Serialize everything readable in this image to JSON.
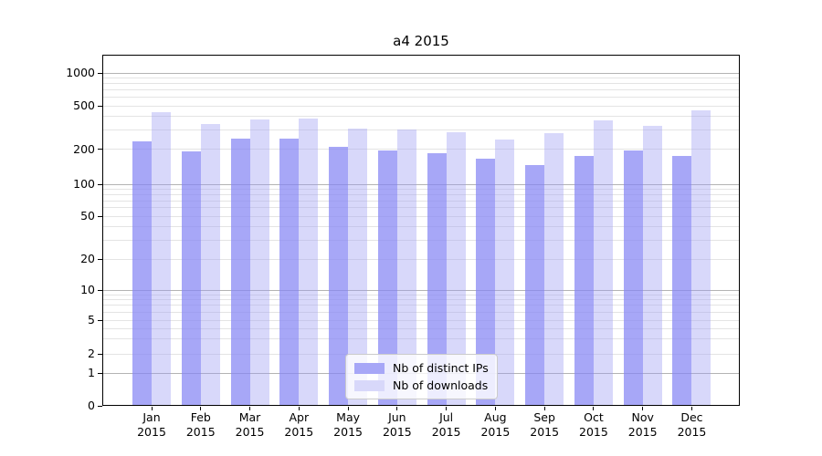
{
  "figure": {
    "title": "a4 2015"
  },
  "chart_data": {
    "type": "bar",
    "title": "a4 2015",
    "yscale": "symlog",
    "grid": true,
    "y_ticks": [
      0,
      1,
      2,
      5,
      10,
      20,
      50,
      100,
      200,
      500,
      1000
    ],
    "ylim": [
      0,
      1300
    ],
    "months": [
      "Jan",
      "Feb",
      "Mar",
      "Apr",
      "May",
      "Jun",
      "Jul",
      "Aug",
      "Sep",
      "Oct",
      "Nov",
      "Dec"
    ],
    "year": "2015",
    "categories": [
      "Jan 2015",
      "Feb 2015",
      "Mar 2015",
      "Apr 2015",
      "May 2015",
      "Jun 2015",
      "Jul 2015",
      "Aug 2015",
      "Sep 2015",
      "Oct 2015",
      "Nov 2015",
      "Dec 2015"
    ],
    "series": [
      {
        "name": "Nb of distinct IPs",
        "values": [
          235,
          190,
          250,
          250,
          210,
          195,
          185,
          165,
          145,
          175,
          195,
          175
        ]
      },
      {
        "name": "Nb of downloads",
        "values": [
          435,
          340,
          375,
          385,
          310,
          305,
          285,
          245,
          280,
          370,
          330,
          450
        ]
      }
    ],
    "legend": {
      "entries": [
        "Nb of distinct IPs",
        "Nb of downloads"
      ],
      "position": "bottom-center"
    }
  },
  "colors": {
    "bar_distinct_ips": "rgba(133,133,244,0.72)",
    "bar_downloads": "rgba(158,158,243,0.40)",
    "swatch_distinct_ips": "#a7a7f7",
    "swatch_downloads": "#d8d8fa",
    "major_gridline": "#b3b3b3",
    "minor_gridline": "#e4e4e4",
    "axis_frame": "#000000",
    "background": "#ffffff",
    "legend_border": "#cbcbcb"
  }
}
